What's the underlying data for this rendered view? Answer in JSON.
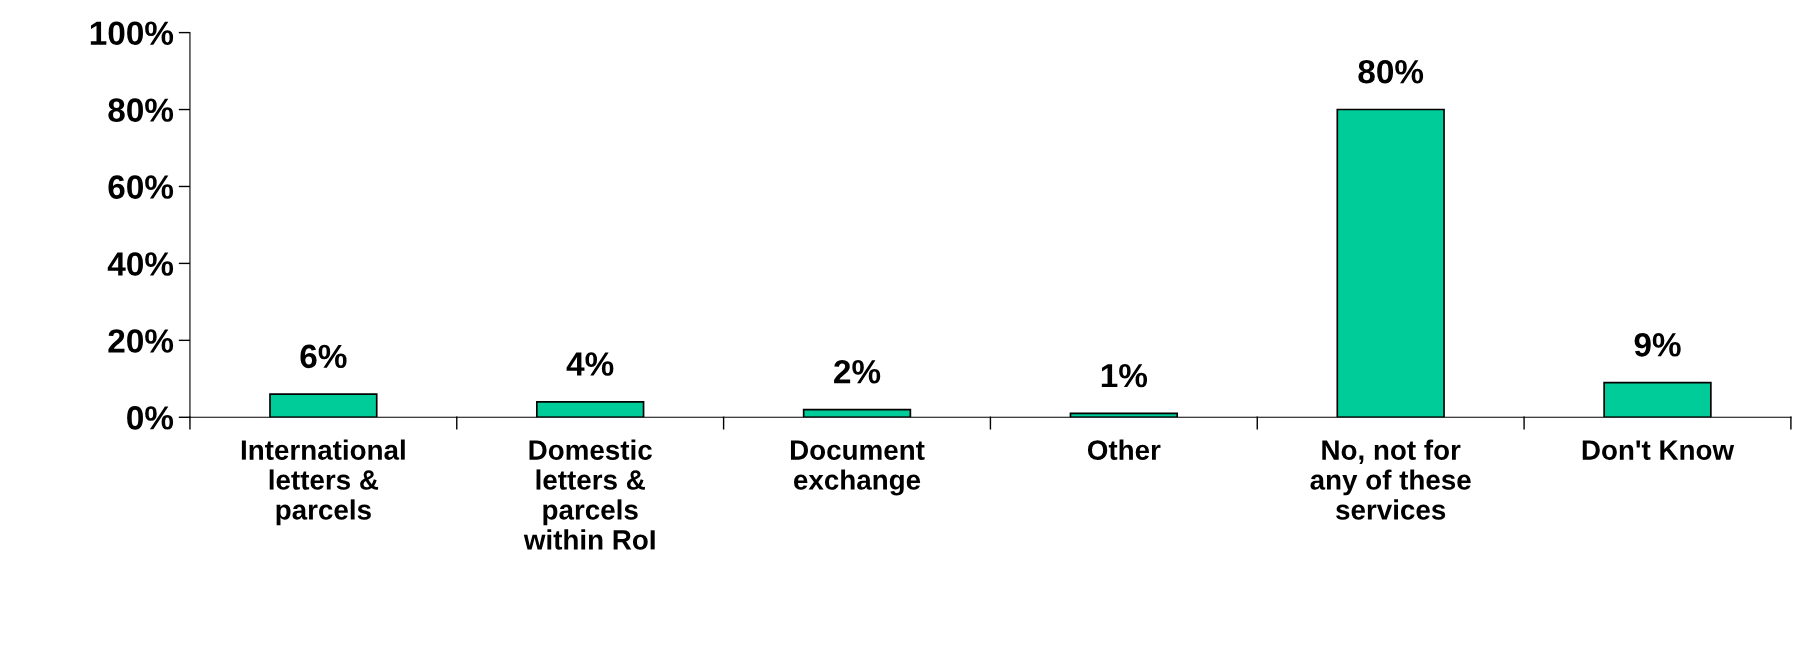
{
  "chart_data": {
    "type": "bar",
    "categories": [
      "International\nletters &\nparcels",
      "Domestic\nletters &\nparcels\nwithin RoI",
      "Document\nexchange",
      "Other",
      "No, not for\nany of these\nservices",
      "Don't Know"
    ],
    "values": [
      6,
      4,
      2,
      1,
      80,
      9
    ],
    "color": "#00cc99",
    "ylim": [
      0,
      100
    ],
    "yticks": [
      {
        "value": 0,
        "label": "0%"
      },
      {
        "value": 20,
        "label": "20%"
      },
      {
        "value": 40,
        "label": "40%"
      },
      {
        "value": 60,
        "label": "60%"
      },
      {
        "value": 80,
        "label": "80%"
      },
      {
        "value": 100,
        "label": "100%"
      }
    ],
    "value_labels": [
      "6%",
      "4%",
      "2%",
      "1%",
      "80%",
      "9%"
    ],
    "grid": false,
    "legend": false
  }
}
